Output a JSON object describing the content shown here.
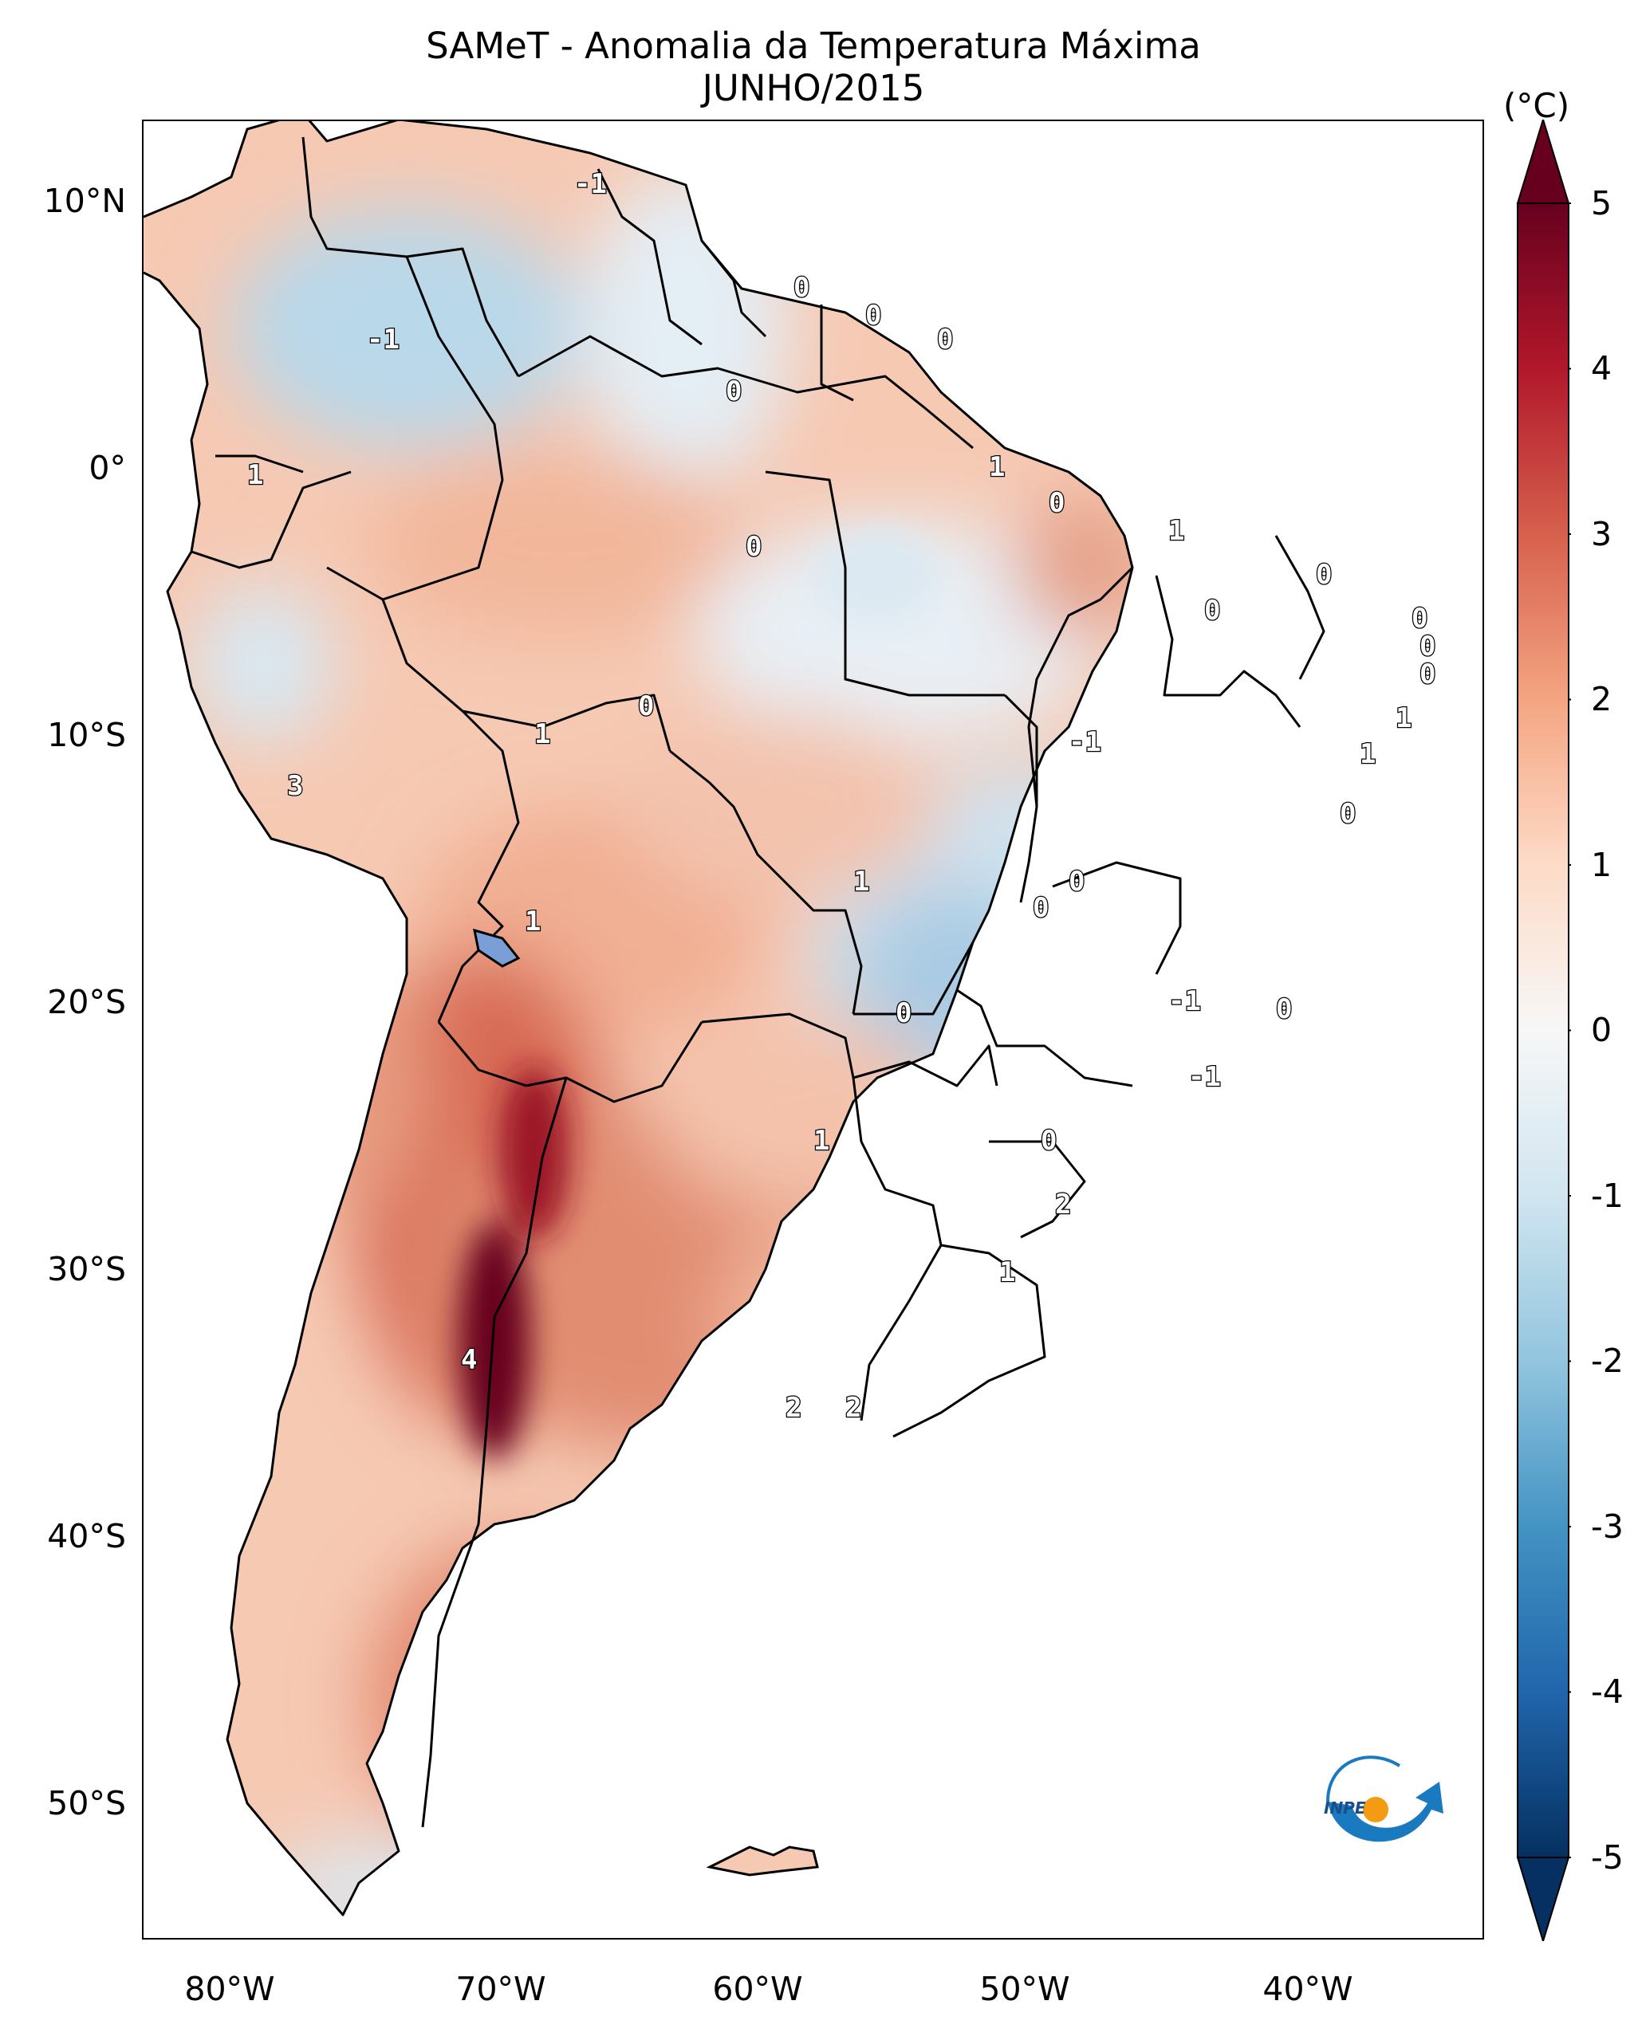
{
  "title": "SAMeT - Anomalia da Temperatura Máxima",
  "subtitle": "JUNHO/2015",
  "colorbar": {
    "unit": "(°C)",
    "ticks": [
      "5",
      "4",
      "3",
      "2",
      "1",
      "0",
      "-1",
      "-2",
      "-3",
      "-4",
      "-5"
    ],
    "range": [
      -5,
      5
    ],
    "colors": [
      "#053061",
      "#2166ac",
      "#4393c3",
      "#92c5de",
      "#d1e5f0",
      "#f7f7f7",
      "#fddbc7",
      "#f4a582",
      "#d6604d",
      "#b2182b",
      "#67001f"
    ]
  },
  "latitude_labels": [
    "10°N",
    "0°",
    "10°S",
    "20°S",
    "30°S",
    "40°S",
    "50°S"
  ],
  "longitude_labels": [
    "80°W",
    "70°W",
    "60°W",
    "50°W",
    "40°W"
  ],
  "contour_labels": [
    "-1",
    "-1",
    "0",
    "0",
    "0",
    "0",
    "1",
    "0",
    "1",
    "1",
    "0",
    "0",
    "0",
    "0",
    "0",
    "0",
    "1",
    "1",
    "3",
    "1",
    "-1",
    "0",
    "1",
    "0",
    "0",
    "0",
    "-1",
    "0",
    "0",
    "-1",
    "1",
    "0",
    "2",
    "1",
    "4",
    "2",
    "2",
    "1"
  ],
  "logo": {
    "text": "INPE"
  }
}
